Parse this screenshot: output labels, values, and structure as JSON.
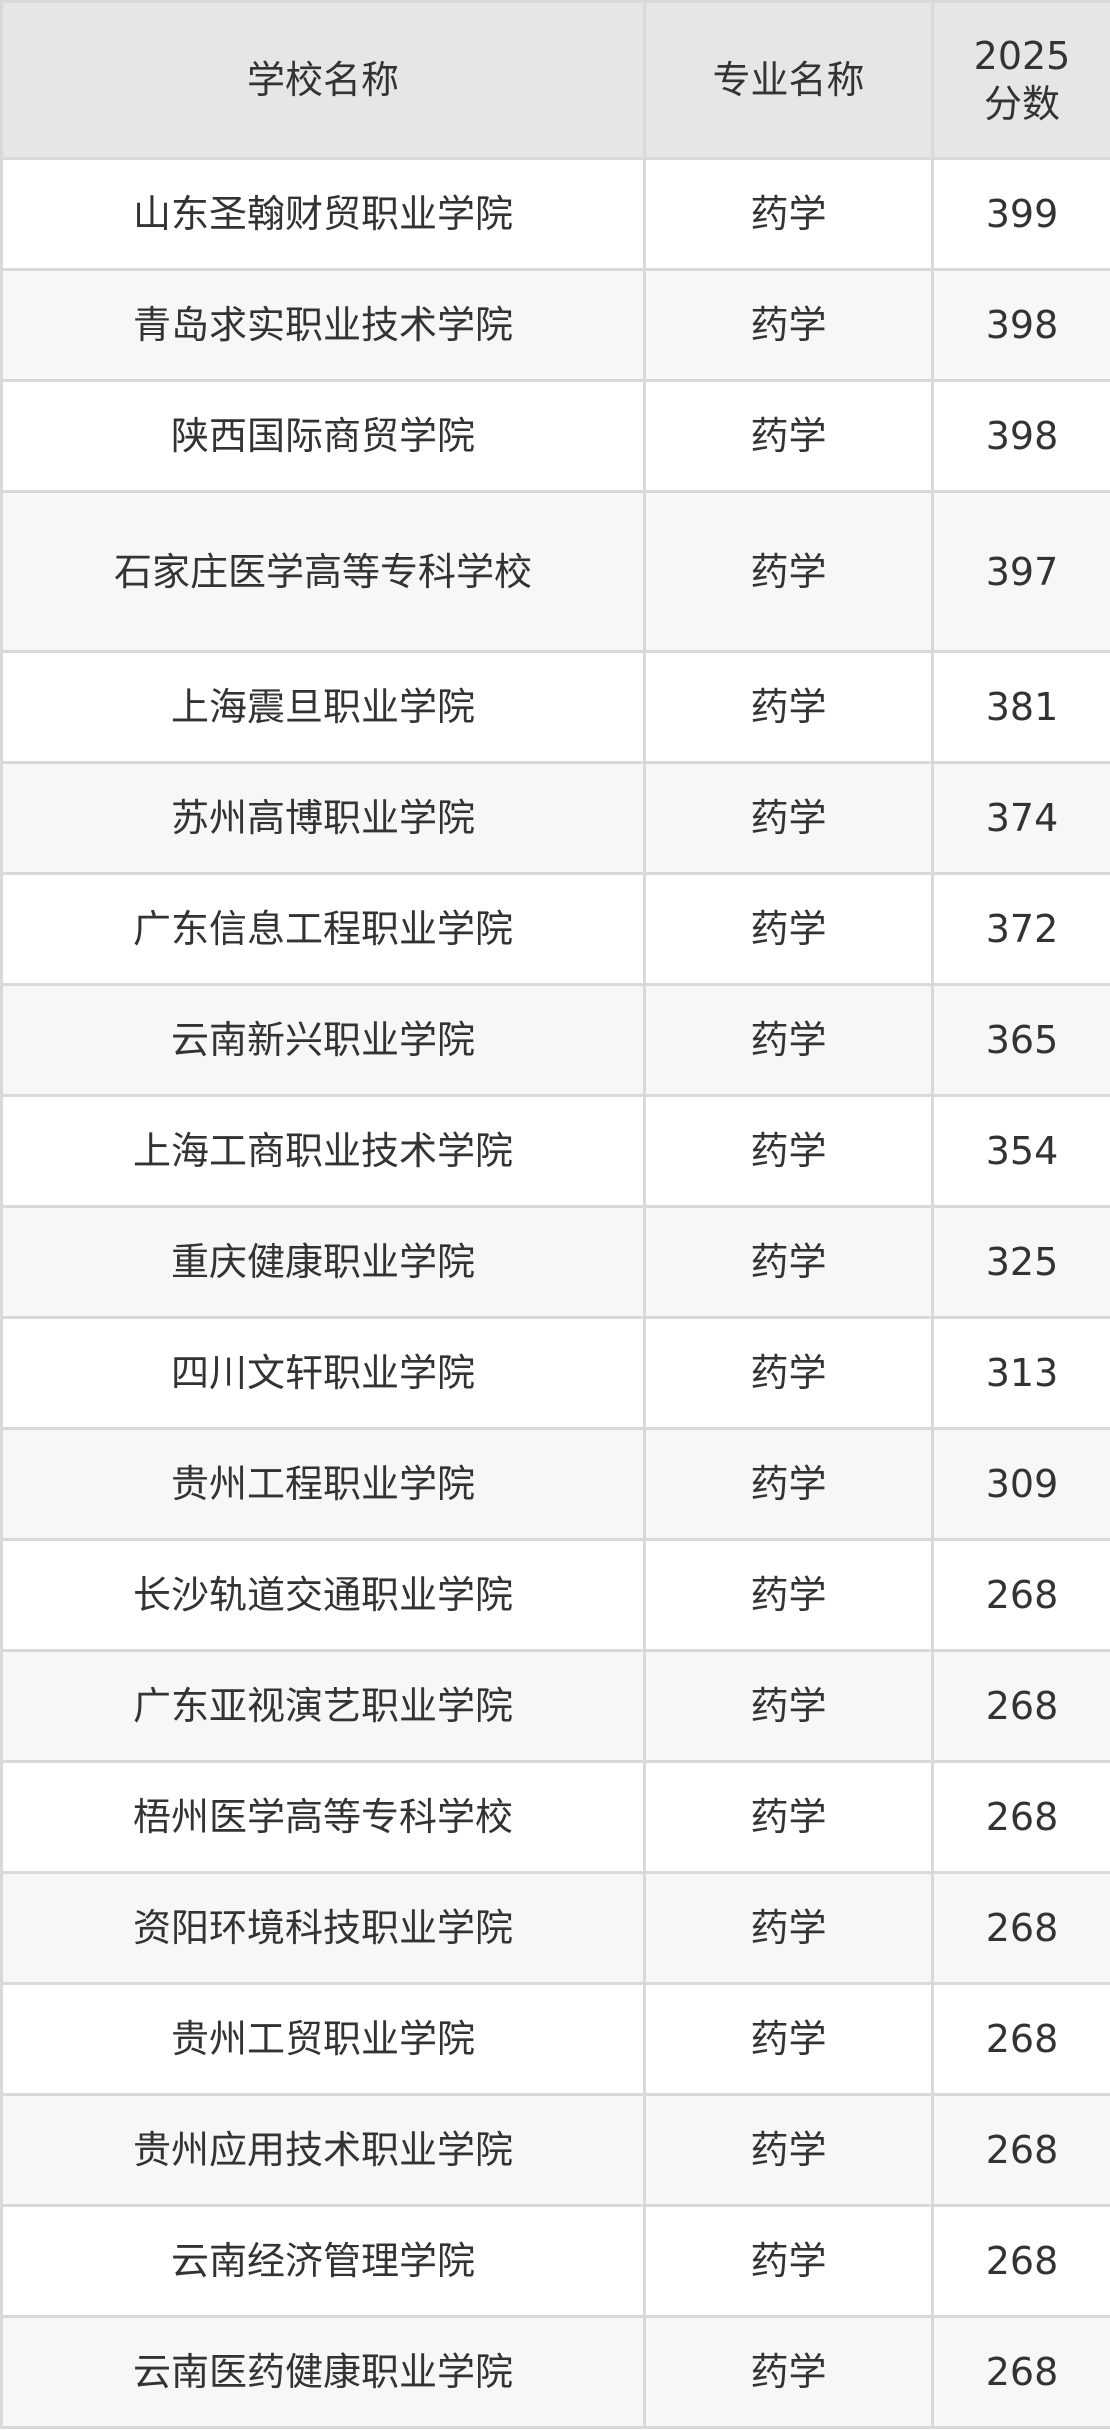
{
  "table": {
    "headers": {
      "school": "学校名称",
      "major": "专业名称",
      "score_year": "2025",
      "score_label": "分数"
    },
    "rows": [
      {
        "school": "山东圣翰财贸职业学院",
        "major": "药学",
        "score": "399"
      },
      {
        "school": "青岛求实职业技术学院",
        "major": "药学",
        "score": "398"
      },
      {
        "school": "陕西国际商贸学院",
        "major": "药学",
        "score": "398"
      },
      {
        "school": "石家庄医学高等专科学校",
        "major": "药学",
        "score": "397"
      },
      {
        "school": "上海震旦职业学院",
        "major": "药学",
        "score": "381"
      },
      {
        "school": "苏州高博职业学院",
        "major": "药学",
        "score": "374"
      },
      {
        "school": "广东信息工程职业学院",
        "major": "药学",
        "score": "372"
      },
      {
        "school": "云南新兴职业学院",
        "major": "药学",
        "score": "365"
      },
      {
        "school": "上海工商职业技术学院",
        "major": "药学",
        "score": "354"
      },
      {
        "school": "重庆健康职业学院",
        "major": "药学",
        "score": "325"
      },
      {
        "school": "四川文轩职业学院",
        "major": "药学",
        "score": "313"
      },
      {
        "school": "贵州工程职业学院",
        "major": "药学",
        "score": "309"
      },
      {
        "school": "长沙轨道交通职业学院",
        "major": "药学",
        "score": "268"
      },
      {
        "school": "广东亚视演艺职业学院",
        "major": "药学",
        "score": "268"
      },
      {
        "school": "梧州医学高等专科学校",
        "major": "药学",
        "score": "268"
      },
      {
        "school": "资阳环境科技职业学院",
        "major": "药学",
        "score": "268"
      },
      {
        "school": "贵州工贸职业学院",
        "major": "药学",
        "score": "268"
      },
      {
        "school": "贵州应用技术职业学院",
        "major": "药学",
        "score": "268"
      },
      {
        "school": "云南经济管理学院",
        "major": "药学",
        "score": "268"
      },
      {
        "school": "云南医药健康职业学院",
        "major": "药学",
        "score": "268"
      }
    ]
  }
}
